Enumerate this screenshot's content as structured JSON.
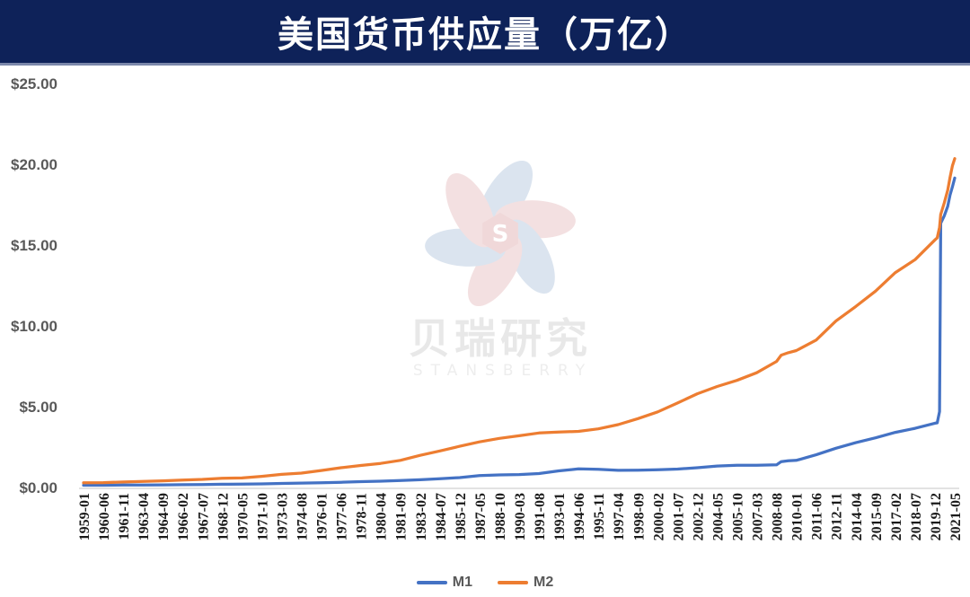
{
  "header": {
    "title": "美国货币供应量（万亿）"
  },
  "watermark": {
    "cn": "贝瑞研究",
    "en": "STANSBERRY",
    "logo_letter": "S"
  },
  "colors": {
    "header_bg": "#0e2259",
    "m1_line": "#4472c4",
    "m2_line": "#ed7d31",
    "y_label": "#595959",
    "x_label": "#1a1a1a",
    "axis_line": "#d9d9d9",
    "petal_blue": "#b9cbe0",
    "petal_pink": "#e8c3c4",
    "hexagon_pink": "#e2b3b5"
  },
  "chart_data": {
    "type": "line",
    "title": "美国货币供应量（万亿）",
    "grid": false,
    "legend_position": "bottom",
    "ylim": [
      0,
      25
    ],
    "y_ticks": [
      {
        "label": "$25.00",
        "value": 25
      },
      {
        "label": "$20.00",
        "value": 20
      },
      {
        "label": "$15.00",
        "value": 15
      },
      {
        "label": "$10.00",
        "value": 10
      },
      {
        "label": "$5.00",
        "value": 5
      },
      {
        "label": "$0.00",
        "value": 0
      }
    ],
    "x_tick_labels": [
      "1959-01",
      "1960-06",
      "1961-11",
      "1963-04",
      "1964-09",
      "1966-02",
      "1967-07",
      "1968-12",
      "1970-05",
      "1971-10",
      "1973-03",
      "1974-08",
      "1976-01",
      "1977-06",
      "1978-11",
      "1980-04",
      "1981-09",
      "1983-02",
      "1984-07",
      "1985-12",
      "1987-05",
      "1988-10",
      "1990-03",
      "1991-08",
      "1993-01",
      "1994-06",
      "1995-11",
      "1997-04",
      "1998-09",
      "2000-02",
      "2001-07",
      "2002-12",
      "2004-05",
      "2005-10",
      "2007-03",
      "2008-08",
      "2010-01",
      "2011-06",
      "2012-11",
      "2014-04",
      "2015-09",
      "2017-02",
      "2018-07",
      "2019-12",
      "2021-05"
    ],
    "series": [
      {
        "name": "M1",
        "color": "#4472c4"
      },
      {
        "name": "M2",
        "color": "#ed7d31"
      }
    ],
    "samples_format": [
      "date",
      "M1",
      "M2"
    ],
    "samples": [
      [
        "1959-01",
        0.14,
        0.29
      ],
      [
        "1960-06",
        0.14,
        0.3
      ],
      [
        "1961-11",
        0.15,
        0.34
      ],
      [
        "1963-04",
        0.15,
        0.37
      ],
      [
        "1964-09",
        0.16,
        0.41
      ],
      [
        "1966-02",
        0.17,
        0.46
      ],
      [
        "1967-07",
        0.18,
        0.5
      ],
      [
        "1968-12",
        0.2,
        0.57
      ],
      [
        "1970-05",
        0.21,
        0.59
      ],
      [
        "1971-10",
        0.22,
        0.69
      ],
      [
        "1973-03",
        0.25,
        0.81
      ],
      [
        "1974-08",
        0.27,
        0.89
      ],
      [
        "1976-01",
        0.29,
        1.05
      ],
      [
        "1977-06",
        0.32,
        1.22
      ],
      [
        "1978-11",
        0.36,
        1.36
      ],
      [
        "1980-04",
        0.39,
        1.49
      ],
      [
        "1981-09",
        0.43,
        1.68
      ],
      [
        "1983-02",
        0.48,
        1.99
      ],
      [
        "1984-07",
        0.54,
        2.26
      ],
      [
        "1985-12",
        0.61,
        2.55
      ],
      [
        "1987-05",
        0.74,
        2.82
      ],
      [
        "1988-10",
        0.78,
        3.04
      ],
      [
        "1990-03",
        0.8,
        3.2
      ],
      [
        "1991-08",
        0.86,
        3.37
      ],
      [
        "1993-01",
        1.03,
        3.43
      ],
      [
        "1994-06",
        1.15,
        3.47
      ],
      [
        "1995-11",
        1.13,
        3.63
      ],
      [
        "1997-04",
        1.06,
        3.89
      ],
      [
        "1998-09",
        1.07,
        4.26
      ],
      [
        "2000-02",
        1.1,
        4.68
      ],
      [
        "2001-07",
        1.14,
        5.23
      ],
      [
        "2002-12",
        1.22,
        5.8
      ],
      [
        "2004-05",
        1.33,
        6.25
      ],
      [
        "2005-10",
        1.37,
        6.63
      ],
      [
        "2007-03",
        1.37,
        7.1
      ],
      [
        "2008-08",
        1.4,
        7.8
      ],
      [
        "2008-12",
        1.6,
        8.19
      ],
      [
        "2009-06",
        1.65,
        8.34
      ],
      [
        "2010-01",
        1.68,
        8.47
      ],
      [
        "2011-06",
        2.02,
        9.12
      ],
      [
        "2012-11",
        2.43,
        10.3
      ],
      [
        "2014-04",
        2.77,
        11.2
      ],
      [
        "2015-09",
        3.07,
        12.15
      ],
      [
        "2017-02",
        3.41,
        13.3
      ],
      [
        "2018-07",
        3.66,
        14.1
      ],
      [
        "2019-12",
        3.98,
        15.32
      ],
      [
        "2020-02",
        4.0,
        15.45
      ],
      [
        "2020-04",
        4.7,
        16.1
      ],
      [
        "2020-05",
        16.35,
        16.9
      ],
      [
        "2020-08",
        16.8,
        17.6
      ],
      [
        "2020-11",
        17.4,
        18.4
      ],
      [
        "2021-01",
        18.1,
        19.2
      ],
      [
        "2021-03",
        18.6,
        19.9
      ],
      [
        "2021-05",
        19.15,
        20.35
      ]
    ]
  }
}
